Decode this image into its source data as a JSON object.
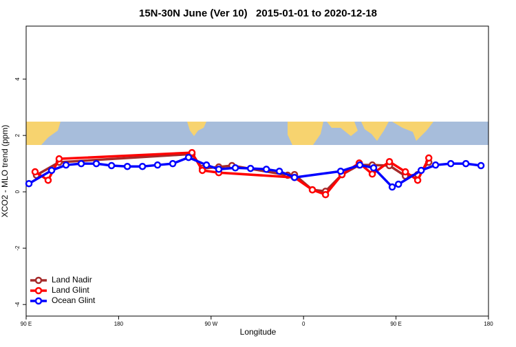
{
  "chart_data": {
    "type": "line",
    "title": "15N-30N June (Ver 10)   2015-01-01 to 2020-12-18",
    "xlabel": "Longitude",
    "ylabel": "XCO2 - MLO trend (ppm)",
    "xlim": [
      90,
      540
    ],
    "xticks": [
      {
        "value": 90,
        "label": "90 E"
      },
      {
        "value": 180,
        "label": "180"
      },
      {
        "value": 270,
        "label": "90 W"
      },
      {
        "value": 360,
        "label": "0"
      },
      {
        "value": 450,
        "label": "90 E"
      },
      {
        "value": 540,
        "label": "180"
      }
    ],
    "ylim": [
      -4.41,
      5.88
    ],
    "yticks": [
      -4,
      -2,
      0,
      2,
      4
    ],
    "legend": "lower left",
    "series": [
      {
        "name": "Land Nadir",
        "color": "#a52a2a",
        "x": [
          100.0,
          122.1,
          251.4,
          261.5,
          277.5,
          290.3,
          344.5,
          351.2,
          368.6,
          381.4,
          397.4,
          414.2,
          426.9,
          443.6,
          459.1,
          471.1,
          481.9
        ],
        "values": [
          0.59,
          1.05,
          1.34,
          0.83,
          0.88,
          0.93,
          0.59,
          0.61,
          0.07,
          0.02,
          0.61,
          0.95,
          0.95,
          0.93,
          0.56,
          0.61,
          1.05
        ]
      },
      {
        "name": "Land Glint",
        "color": "#ff0000",
        "x": [
          98.7,
          111.4,
          122.1,
          251.4,
          261.5,
          277.5,
          351.2,
          368.6,
          381.4,
          397.4,
          414.2,
          426.9,
          443.6,
          459.1,
          471.1,
          481.9
        ],
        "values": [
          0.71,
          0.41,
          1.17,
          1.39,
          0.76,
          0.68,
          0.51,
          0.07,
          -0.1,
          0.61,
          1.02,
          0.63,
          1.07,
          0.71,
          0.41,
          1.2
        ]
      },
      {
        "name": "Ocean Glint",
        "color": "#0000ff",
        "x": [
          92.7,
          114.8,
          128.8,
          143.6,
          158.3,
          173.1,
          188.5,
          203.2,
          217.9,
          232.7,
          248.1,
          265.5,
          277.5,
          293.6,
          308.4,
          323.8,
          336.5,
          351.2,
          396.1,
          414.8,
          428.2,
          446.3,
          452.4,
          474.5,
          488.5,
          503.3,
          518.0,
          532.7
        ],
        "values": [
          0.29,
          0.76,
          0.95,
          1.0,
          1.0,
          0.93,
          0.9,
          0.9,
          0.95,
          1.0,
          1.22,
          0.95,
          0.8,
          0.85,
          0.83,
          0.8,
          0.73,
          0.51,
          0.73,
          0.95,
          0.85,
          0.17,
          0.27,
          0.76,
          0.95,
          1.0,
          1.0,
          0.93
        ]
      }
    ]
  }
}
